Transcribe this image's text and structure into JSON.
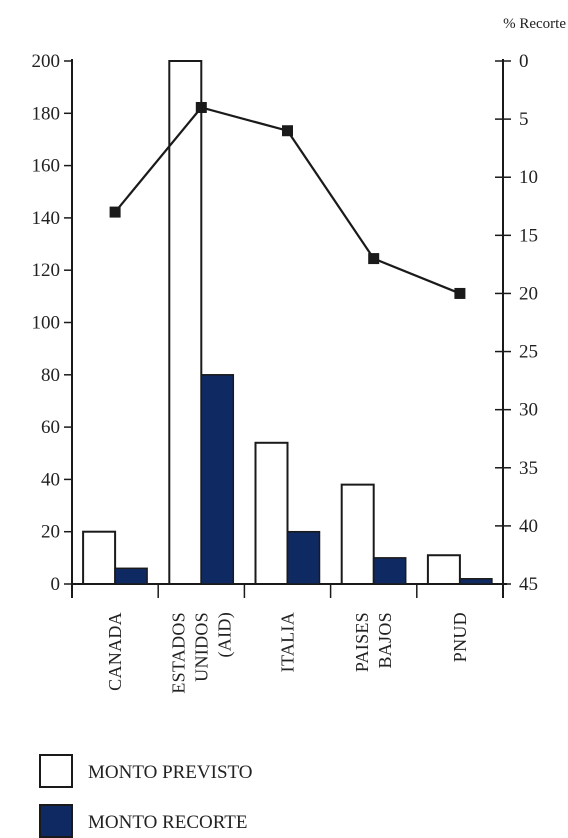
{
  "chart_data": {
    "type": "bar",
    "categories": [
      [
        "CANADA"
      ],
      [
        "ESTADOS",
        "UNIDOS",
        "(AID)"
      ],
      [
        "ITALIA"
      ],
      [
        "PAISES",
        "BAJOS"
      ],
      [
        "PNUD"
      ]
    ],
    "series": [
      {
        "name": "MONTO PREVISTO",
        "values": [
          20,
          200,
          54,
          38,
          11
        ],
        "color": "#ffffff",
        "stroke": "#1a1a1a"
      },
      {
        "name": "MONTO RECORTE",
        "values": [
          6,
          80,
          20,
          10,
          2
        ],
        "color": "#0f2a63",
        "stroke": "#1a1a1a"
      }
    ],
    "line_series": {
      "name": "% Recorte",
      "axis": "right",
      "values": [
        13,
        4,
        6,
        17,
        20
      ],
      "color": "#1a1a1a"
    },
    "left_axis": {
      "ylim": [
        0,
        200
      ],
      "ticks": [
        "0",
        "20",
        "40",
        "60",
        "80",
        "100",
        "120",
        "140",
        "160",
        "180",
        "200"
      ]
    },
    "right_axis": {
      "label": "% Recorte",
      "ylim": [
        0,
        45
      ],
      "inverted": true,
      "ticks": [
        "0",
        "5",
        "10",
        "15",
        "20",
        "25",
        "30",
        "35",
        "40",
        "45"
      ]
    },
    "legend": {
      "position": "bottom-left",
      "entries": [
        "MONTO PREVISTO",
        "MONTO RECORTE"
      ]
    },
    "grid": false
  }
}
